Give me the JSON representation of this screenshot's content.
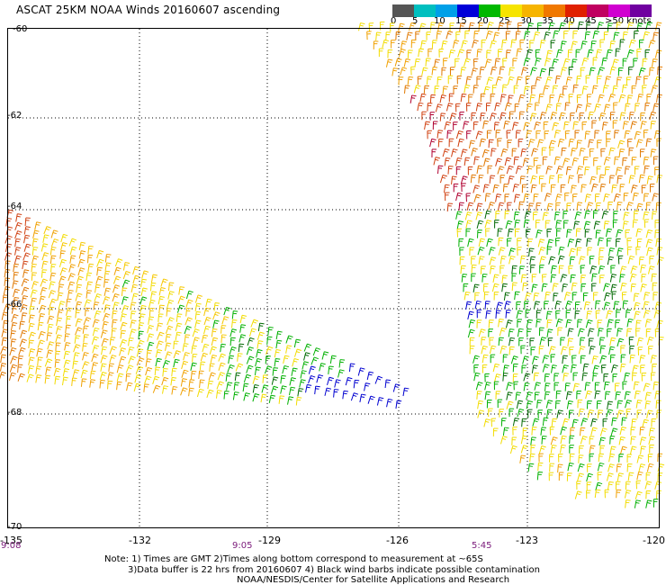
{
  "title": "ASCAT 25KM NOAA Winds 20160607 ascending",
  "colorbar": {
    "colors": [
      "#555555",
      "#00bfbf",
      "#00a0e8",
      "#0000d8",
      "#00b800",
      "#f6e400",
      "#f6b400",
      "#f07800",
      "#e02000",
      "#c00060",
      "#d000d0",
      "#7000a0"
    ],
    "labels": [
      "0",
      "5",
      "10",
      "15",
      "20",
      "25",
      "30",
      "35",
      "40",
      "45",
      ">50 knots"
    ]
  },
  "lat_labels": [
    "-60",
    "-62",
    "-64",
    "-66",
    "-68",
    "-70"
  ],
  "lon_labels": [
    "-135",
    "-132",
    "-129",
    "-126",
    "-123",
    "-120"
  ],
  "times": [
    "9:08",
    "9:05",
    "5:45"
  ],
  "notes": [
    "Note: 1) Times are GMT 2)Times along bottom correspond to measurement at ~65S",
    "3)Data buffer is 22 hrs from 20160607 4) Black wind barbs indicate possible contamination",
    "NOAA/NESDIS/Center for Satellite Applications and Research"
  ],
  "chart_data": {
    "type": "wind_barb_map",
    "lon_range": [
      -135,
      -120
    ],
    "lat_range": [
      -70,
      -60
    ],
    "gridlines": true,
    "swaths": [
      {
        "name": "west swath",
        "time": "9:05",
        "dominant_speeds_knots": "20-35 (yellow/orange), 15-20 green and blue near -128 to -126"
      },
      {
        "name": "east swath",
        "time": "5:45",
        "dominant_speeds_knots": "20-40 (yellow/orange/red) north, 15-25 green/yellow south"
      }
    ]
  }
}
